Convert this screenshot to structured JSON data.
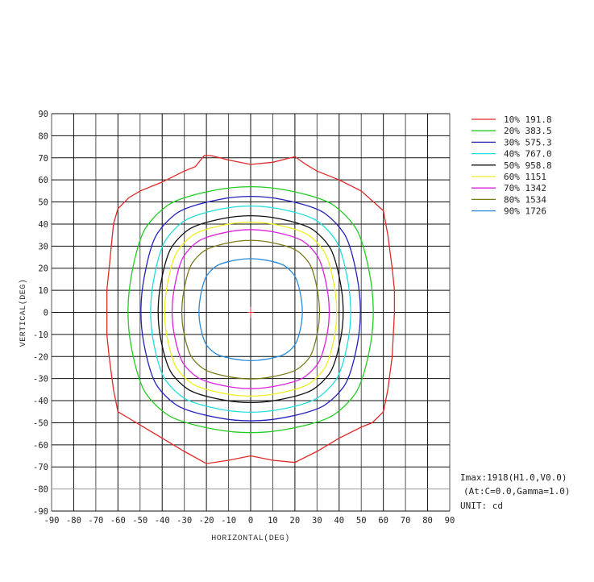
{
  "chart_data": {
    "type": "contour",
    "xlabel": "HORIZONTAL(DEG)",
    "ylabel": "VERTICAL(DEG)",
    "xlim": [
      -90,
      90
    ],
    "ylim": [
      -90,
      90
    ],
    "xticks": [
      -90,
      -80,
      -70,
      -60,
      -50,
      -40,
      -30,
      -20,
      -10,
      0,
      10,
      20,
      30,
      40,
      50,
      60,
      70,
      80,
      90
    ],
    "yticks": [
      90,
      80,
      70,
      60,
      50,
      40,
      30,
      20,
      10,
      0,
      -10,
      -20,
      -30,
      -40,
      -50,
      -60,
      -70,
      -80,
      -90
    ],
    "grid": true,
    "legend_position": "top-right",
    "center_marker": {
      "x": 0,
      "y": 0,
      "color": "#e03030"
    },
    "series": [
      {
        "name": "10% 191.8",
        "color": "#e02828",
        "points": [
          [
            -60,
            47
          ],
          [
            -55,
            52
          ],
          [
            -50,
            55
          ],
          [
            -40,
            59
          ],
          [
            -30,
            64
          ],
          [
            -25,
            66
          ],
          [
            -21,
            71
          ],
          [
            -18,
            71
          ],
          [
            -10,
            69
          ],
          [
            0,
            67
          ],
          [
            10,
            68
          ],
          [
            20,
            70.5
          ],
          [
            25,
            67
          ],
          [
            30,
            64
          ],
          [
            40,
            60
          ],
          [
            50,
            55
          ],
          [
            60,
            46
          ],
          [
            62,
            35
          ],
          [
            64,
            20
          ],
          [
            65,
            10
          ],
          [
            65,
            0
          ],
          [
            64.5,
            -10
          ],
          [
            64,
            -20
          ],
          [
            62,
            -35
          ],
          [
            60,
            -45
          ],
          [
            55,
            -50
          ],
          [
            50,
            -52
          ],
          [
            40,
            -57
          ],
          [
            30,
            -63
          ],
          [
            20,
            -68
          ],
          [
            10,
            -67
          ],
          [
            0,
            -65
          ],
          [
            -10,
            -67
          ],
          [
            -20,
            -68.5
          ],
          [
            -30,
            -63
          ],
          [
            -40,
            -57
          ],
          [
            -50,
            -51
          ],
          [
            -55,
            -48
          ],
          [
            -60,
            -45
          ],
          [
            -62,
            -35
          ],
          [
            -64,
            -20
          ],
          [
            -65,
            -10
          ],
          [
            -65,
            0
          ],
          [
            -65,
            10
          ],
          [
            -64,
            20
          ],
          [
            -63,
            30
          ],
          [
            -62,
            40
          ]
        ]
      },
      {
        "name": "20% 383.5",
        "color": "#22cc22",
        "points": [
          [
            57,
            0
          ],
          [
            50.8,
            33.6
          ],
          [
            43.2,
            44.3
          ],
          [
            32.7,
            52.1
          ],
          [
            0,
            58.5
          ],
          [
            -32.7,
            52.1
          ],
          [
            -43.2,
            44.3
          ],
          [
            -50.8,
            33.6
          ],
          [
            -57,
            0
          ],
          [
            -50.8,
            -32.1
          ],
          [
            -43.2,
            -42.4
          ],
          [
            -32.7,
            -49.9
          ],
          [
            0,
            -56
          ],
          [
            32.7,
            -49.9
          ],
          [
            43.2,
            -42.4
          ],
          [
            50.8,
            -32.1
          ]
        ]
      },
      {
        "name": "30% 575.3",
        "color": "#2222bb",
        "points": [
          [
            51,
            0
          ],
          [
            45.4,
            31
          ],
          [
            38.7,
            40.9
          ],
          [
            29.3,
            48.1
          ],
          [
            0,
            54
          ],
          [
            -29.3,
            48.1
          ],
          [
            -38.7,
            40.9
          ],
          [
            -45.4,
            31
          ],
          [
            -51,
            0
          ],
          [
            -45.4,
            -29
          ],
          [
            -38.7,
            -38.3
          ],
          [
            -29.3,
            -45
          ],
          [
            0,
            -50.5
          ],
          [
            29.3,
            -45
          ],
          [
            38.7,
            -38.3
          ],
          [
            45.4,
            -29
          ]
        ]
      },
      {
        "name": "40% 767.0",
        "color": "#22dddd",
        "points": [
          [
            46.5,
            0
          ],
          [
            41.4,
            28.4
          ],
          [
            35.2,
            37.5
          ],
          [
            26.7,
            44.1
          ],
          [
            0,
            49.5
          ],
          [
            -26.7,
            44.1
          ],
          [
            -35.2,
            37.5
          ],
          [
            -41.4,
            28.4
          ],
          [
            -46.5,
            0
          ],
          [
            -41.4,
            -26.7
          ],
          [
            -35.2,
            -35.2
          ],
          [
            -26.7,
            -41.4
          ],
          [
            0,
            -46.5
          ],
          [
            26.7,
            -41.4
          ],
          [
            35.2,
            -35.2
          ],
          [
            41.4,
            -26.7
          ]
        ]
      },
      {
        "name": "50% 958.8",
        "color": "#111111",
        "points": [
          [
            43,
            0
          ],
          [
            38.3,
            25.8
          ],
          [
            32.6,
            34.1
          ],
          [
            24.7,
            40.1
          ],
          [
            0,
            45
          ],
          [
            -24.7,
            40.1
          ],
          [
            -32.6,
            34.1
          ],
          [
            -38.3,
            25.8
          ],
          [
            -43,
            0
          ],
          [
            -38.3,
            -24.1
          ],
          [
            -32.6,
            -31.8
          ],
          [
            -24.7,
            -37.4
          ],
          [
            0,
            -42
          ],
          [
            24.7,
            -37.4
          ],
          [
            32.6,
            -31.8
          ],
          [
            38.3,
            -24.1
          ]
        ]
      },
      {
        "name": "60% 1151",
        "color": "#eeee22",
        "points": [
          [
            40,
            0
          ],
          [
            35.6,
            24.1
          ],
          [
            30.3,
            31.8
          ],
          [
            23,
            37.4
          ],
          [
            0,
            42
          ],
          [
            -23,
            37.4
          ],
          [
            -30.3,
            31.8
          ],
          [
            -35.6,
            24.1
          ],
          [
            -40,
            0
          ],
          [
            -35.6,
            -22.4
          ],
          [
            -30.3,
            -29.6
          ],
          [
            -23,
            -34.7
          ],
          [
            0,
            -39
          ],
          [
            23,
            -34.7
          ],
          [
            30.3,
            -29.6
          ],
          [
            35.6,
            -22.4
          ]
        ]
      },
      {
        "name": "70% 1342",
        "color": "#dd22dd",
        "points": [
          [
            36.5,
            0
          ],
          [
            32.5,
            22.1
          ],
          [
            27.7,
            29.2
          ],
          [
            21,
            34.3
          ],
          [
            0,
            38.5
          ],
          [
            -21,
            34.3
          ],
          [
            -27.7,
            29.2
          ],
          [
            -32.5,
            22.1
          ],
          [
            -36.5,
            0
          ],
          [
            -32.5,
            -20.4
          ],
          [
            -27.7,
            -26.9
          ],
          [
            -21,
            -31.6
          ],
          [
            0,
            -35.5
          ],
          [
            21,
            -31.6
          ],
          [
            27.7,
            -26.9
          ],
          [
            32.5,
            -20.4
          ]
        ]
      },
      {
        "name": "80% 1534",
        "color": "#7a7a1a",
        "points": [
          [
            32,
            0
          ],
          [
            28.5,
            19.2
          ],
          [
            24.3,
            25.4
          ],
          [
            18.4,
            29.8
          ],
          [
            0,
            33.5
          ],
          [
            -18.4,
            29.8
          ],
          [
            -24.3,
            25.4
          ],
          [
            -28.5,
            19.2
          ],
          [
            -32,
            0
          ],
          [
            -28.5,
            -17.8
          ],
          [
            -24.3,
            -23.5
          ],
          [
            -18.4,
            -27.6
          ],
          [
            0,
            -31
          ],
          [
            18.4,
            -27.6
          ],
          [
            24.3,
            -23.5
          ],
          [
            28.5,
            -17.8
          ]
        ]
      },
      {
        "name": "90% 1726",
        "color": "#2a8ad8",
        "points": [
          [
            24,
            0
          ],
          [
            21.4,
            14.4
          ],
          [
            18.2,
            19
          ],
          [
            13.8,
            22.3
          ],
          [
            0,
            25
          ],
          [
            -13.8,
            22.3
          ],
          [
            -18.2,
            19
          ],
          [
            -21.4,
            14.4
          ],
          [
            -24,
            0
          ],
          [
            -21.4,
            -12.9
          ],
          [
            -18.2,
            -17.1
          ],
          [
            -13.8,
            -20
          ],
          [
            0,
            -22.5
          ],
          [
            13.8,
            -20
          ],
          [
            18.2,
            -17.1
          ],
          [
            21.4,
            -12.9
          ]
        ]
      }
    ]
  },
  "info": {
    "imax": "Imax:1918(H1.0,V0.0)",
    "at": "(At:C=0.0,Gamma=1.0)",
    "unit": "UNIT: cd"
  }
}
